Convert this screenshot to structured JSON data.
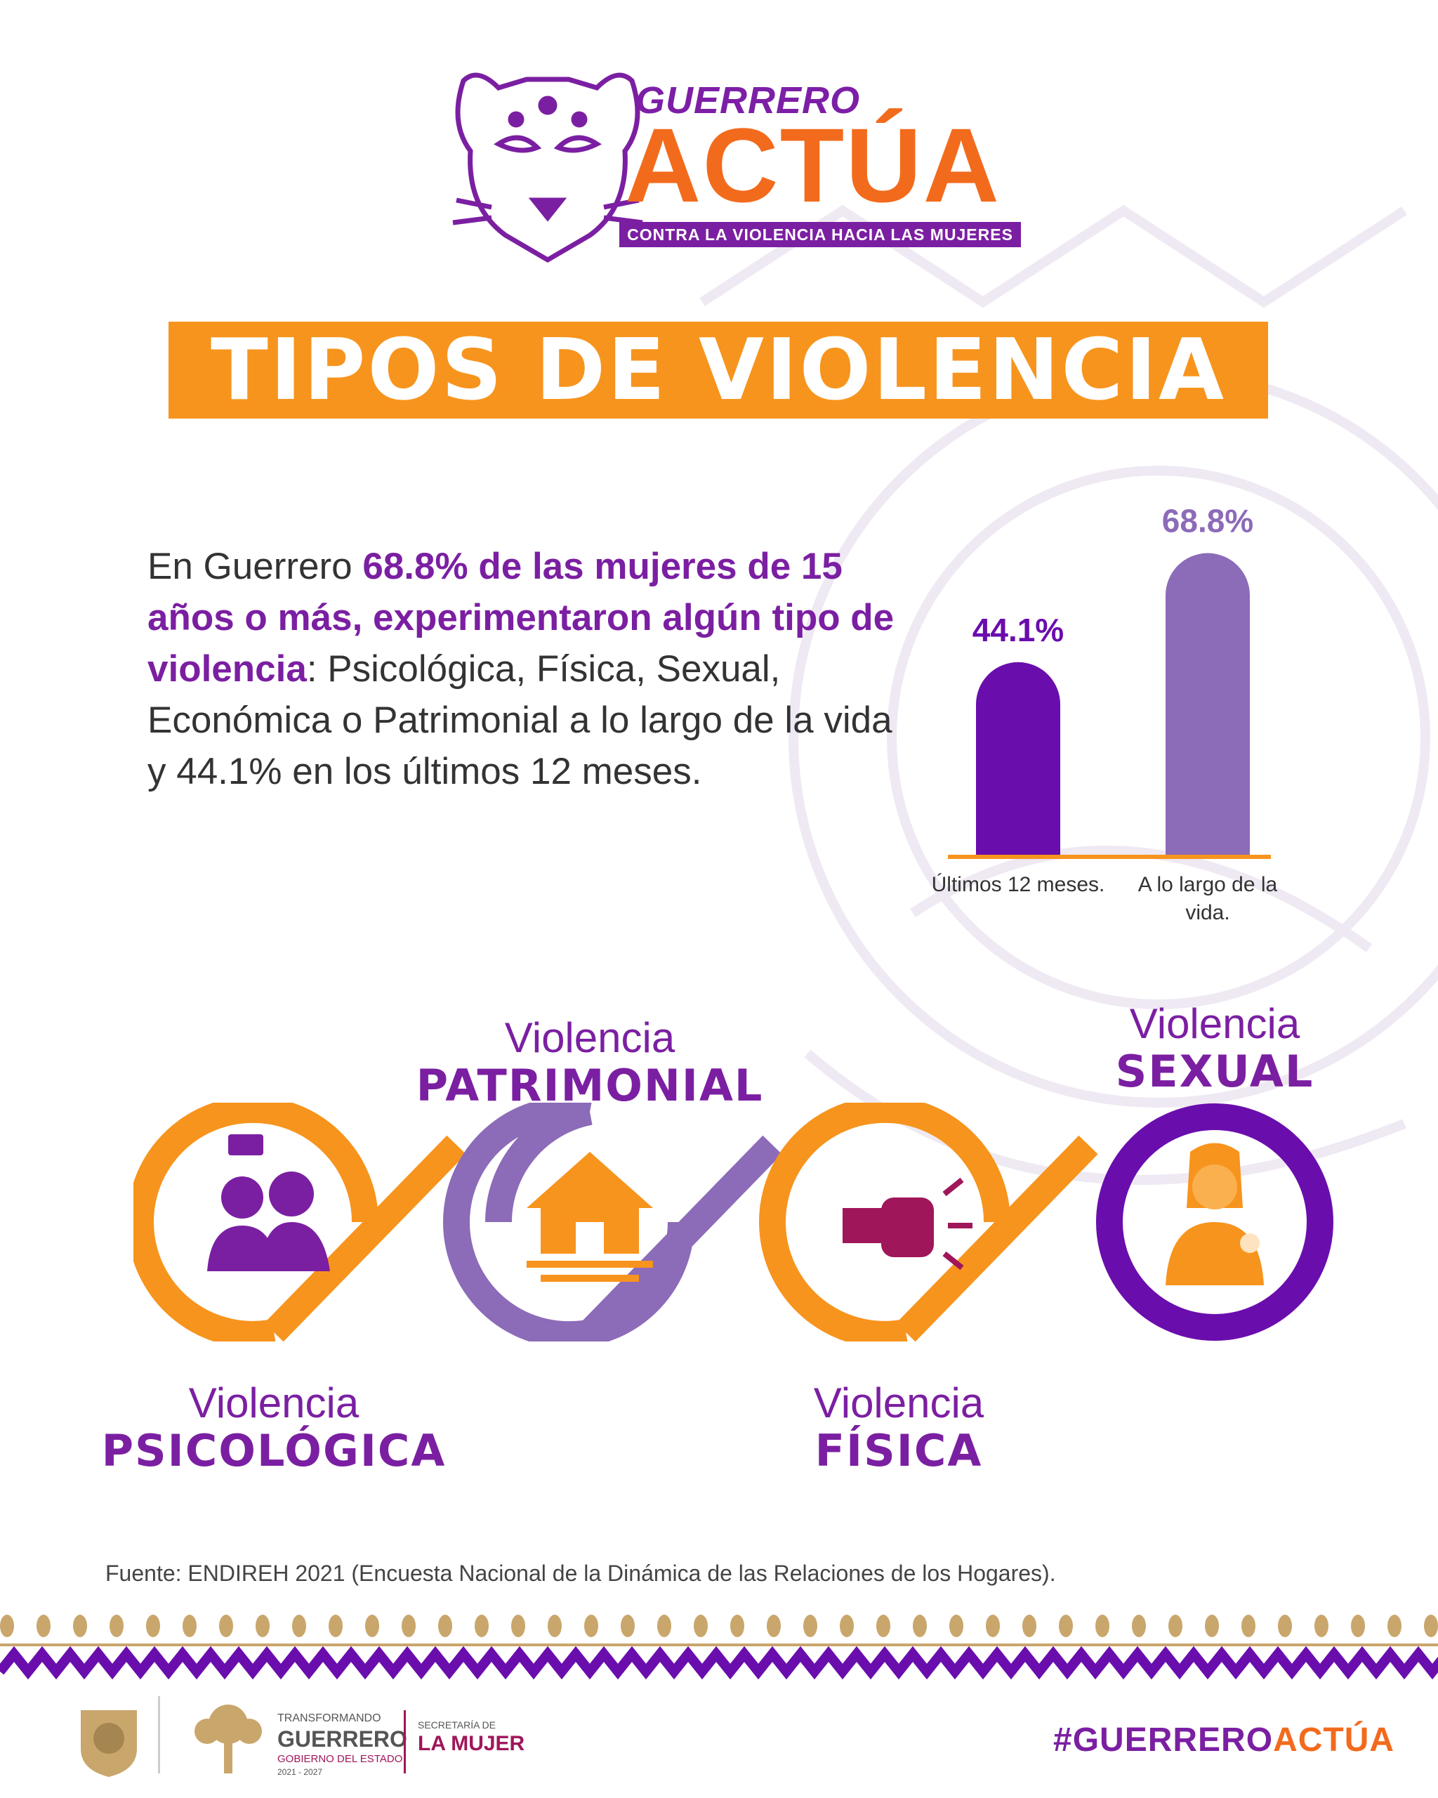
{
  "logo": {
    "word1": "GUERRERO",
    "word2": "ACTÚA",
    "tagline": "CONTRA LA VIOLENCIA HACIA LAS MUJERES"
  },
  "title": "TIPOS DE VIOLENCIA",
  "paragraph": {
    "part1": "En Guerrero ",
    "highlight": "68.8% de las mujeres de 15 años o más, experimentaron algún tipo de violencia",
    "part2": ": Psicológica, Física, Sexual, Económica o Patrimonial a lo largo de la vida y 44.1% en los últimos 12 meses."
  },
  "chart_data": {
    "type": "bar",
    "categories": [
      "Últimos 12 meses.",
      "A lo largo de la vida."
    ],
    "values": [
      44.1,
      68.8
    ],
    "data_labels": [
      "44.1%",
      "68.8%"
    ],
    "colors": [
      "#6a0dad",
      "#8c6bb8"
    ],
    "ylim": [
      0,
      70
    ],
    "title": "",
    "xlabel": "",
    "ylabel": "",
    "grid": false
  },
  "types": [
    {
      "line1": "Violencia",
      "line2": "PSICOLÓGICA",
      "icon": "people-speech-icon",
      "color": "#f7941d"
    },
    {
      "line1": "Violencia",
      "line2": "PATRIMONIAL",
      "icon": "house-icon",
      "color": "#8c6bb8"
    },
    {
      "line1": "Violencia",
      "line2": "FÍSICA",
      "icon": "fist-icon",
      "color": "#f7941d"
    },
    {
      "line1": "Violencia",
      "line2": "SEXUAL",
      "icon": "woman-touched-icon",
      "color": "#6a0dad"
    }
  ],
  "source": "Fuente: ENDIREH 2021 (Encuesta Nacional de la Dinámica de las Relaciones de los Hogares).",
  "footer": {
    "gov_small": "TRANSFORMANDO",
    "gov_name": "GUERRERO",
    "gov_sub": "GOBIERNO DEL ESTADO",
    "gov_years": "2021 - 2027",
    "sec_small": "SECRETARÍA DE",
    "sec_name": "LA MUJER",
    "hashtag_a": "#GUERRERO",
    "hashtag_b": "ACTÚA"
  }
}
